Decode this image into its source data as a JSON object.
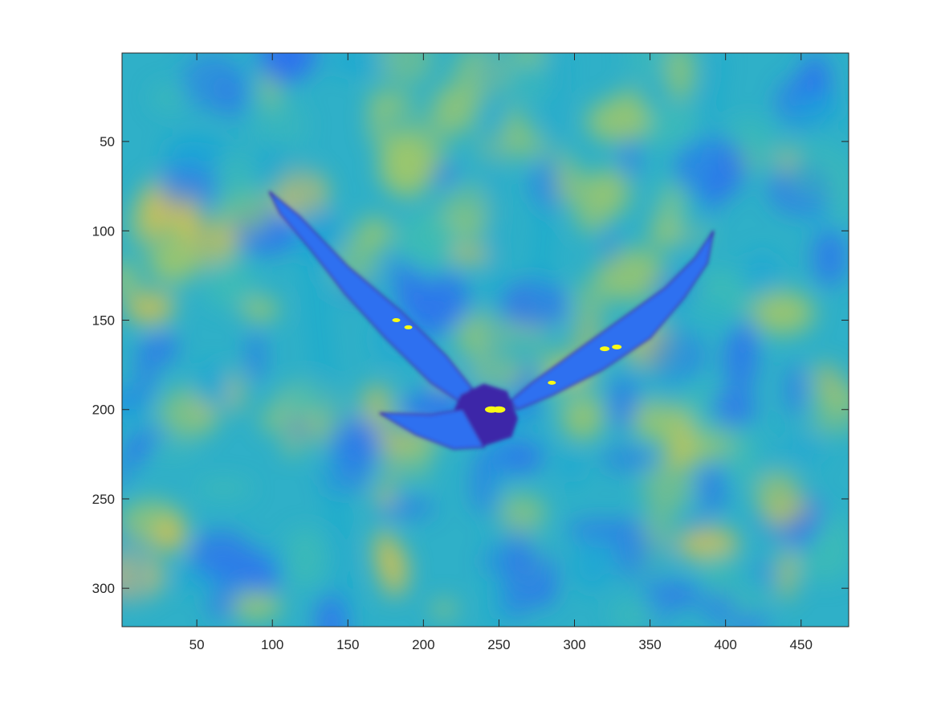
{
  "figure": {
    "image_description_name": "bird-in-flight-image",
    "colormap": [
      "#3e26a8",
      "#2d6ff0",
      "#1ba5d6",
      "#3fbcb3",
      "#9fc76a",
      "#d8c14a",
      "#f9fb15"
    ],
    "background_color": "#2fb0c8",
    "axis_color": "#262626"
  },
  "chart_data": {
    "type": "heatmap",
    "title": "",
    "xlabel": "",
    "ylabel": "",
    "xlim": [
      0.5,
      481.5
    ],
    "ylim": [
      0.5,
      321.5
    ],
    "y_reversed": true,
    "grid": false,
    "xticks": [
      50,
      100,
      150,
      200,
      250,
      300,
      350,
      400,
      450
    ],
    "xtick_labels": [
      "50",
      "100",
      "150",
      "200",
      "250",
      "300",
      "350",
      "400",
      "450"
    ],
    "yticks": [
      50,
      100,
      150,
      200,
      250,
      300
    ],
    "ytick_labels": [
      "50",
      "100",
      "150",
      "200",
      "250",
      "300"
    ]
  }
}
